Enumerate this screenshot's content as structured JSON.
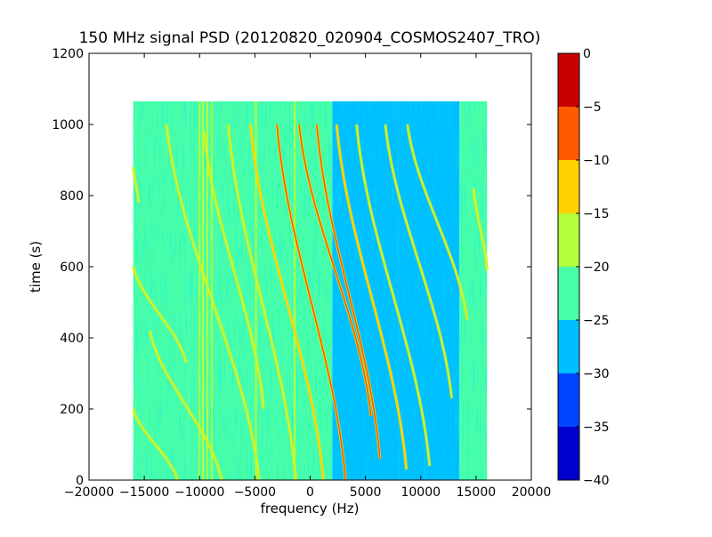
{
  "chart_data": {
    "type": "heatmap",
    "title": "150 MHz signal PSD (20120820_020904_COSMOS2407_TRO)",
    "xlabel": "frequency (Hz)",
    "ylabel": "time (s)",
    "xlim": [
      -20000,
      20000
    ],
    "ylim": [
      0,
      1200
    ],
    "xticks": [
      -20000,
      -15000,
      -10000,
      -5000,
      0,
      5000,
      10000,
      15000,
      20000
    ],
    "xtick_labels": [
      "−20000",
      "−15000",
      "−10000",
      "−5000",
      "0",
      "5000",
      "10000",
      "15000",
      "20000"
    ],
    "yticks": [
      0,
      200,
      400,
      600,
      800,
      1000,
      1200
    ],
    "ytick_labels": [
      "0",
      "200",
      "400",
      "600",
      "800",
      "1000",
      "1200"
    ],
    "data_extent": {
      "freq": [
        -16000,
        16000
      ],
      "time": [
        0,
        1065
      ]
    },
    "colorbar": {
      "levels": [
        -40,
        -35,
        -30,
        -25,
        -20,
        -15,
        -10,
        -5,
        0
      ],
      "tick_labels": [
        "−40",
        "−35",
        "−30",
        "−25",
        "−20",
        "−15",
        "−10",
        "−5",
        "0"
      ],
      "colors": [
        "#0000cd",
        "#0044ff",
        "#00bfff",
        "#48ffa8",
        "#b4ff3c",
        "#ffd100",
        "#ff5a00",
        "#c80000"
      ]
    },
    "background_psd": {
      "description_regions": [
        {
          "freq": [
            -16000,
            -11000
          ],
          "psd": -22.5
        },
        {
          "freq": [
            -11000,
            2000
          ],
          "psd": -22.5
        },
        {
          "freq": [
            2000,
            8000
          ],
          "psd": -25.5
        },
        {
          "freq": [
            8000,
            13500
          ],
          "psd": -28
        },
        {
          "freq": [
            13500,
            16000
          ],
          "psd": -22.5
        }
      ]
    },
    "vertical_lines": [
      {
        "freq": -10000,
        "psd": -17
      },
      {
        "freq": -9700,
        "psd": -17
      },
      {
        "freq": -9300,
        "psd": -17
      },
      {
        "freq": -8900,
        "psd": -17
      },
      {
        "freq": -4900,
        "psd": -17
      },
      {
        "freq": -1400,
        "psd": -17
      }
    ],
    "doppler_traces": [
      {
        "freq_start": -16000,
        "t_start": 880,
        "freq_end": -15500,
        "t_end": 780,
        "psd": -17
      },
      {
        "freq_start": -16000,
        "t_start": 600,
        "freq_end": -11200,
        "t_end": 330,
        "psd": -17
      },
      {
        "freq_start": -16000,
        "t_start": 200,
        "freq_end": -12000,
        "t_end": 0,
        "psd": -17
      },
      {
        "freq_start": -14500,
        "t_start": 420,
        "freq_end": -8000,
        "t_end": 0,
        "psd": -17
      },
      {
        "freq_start": -13000,
        "t_start": 1000,
        "freq_end": -4600,
        "t_end": 0,
        "psd": -17
      },
      {
        "freq_start": -9600,
        "t_start": 980,
        "freq_end": -4200,
        "t_end": 200,
        "psd": -17
      },
      {
        "freq_start": -7400,
        "t_start": 1000,
        "freq_end": -1300,
        "t_end": 0,
        "psd": -17
      },
      {
        "freq_start": -5400,
        "t_start": 1000,
        "freq_end": 1200,
        "t_end": 0,
        "psd": -14
      },
      {
        "freq_start": -3000,
        "t_start": 1000,
        "freq_end": 3200,
        "t_end": 0,
        "psd": -8
      },
      {
        "freq_start": -1000,
        "t_start": 1000,
        "freq_end": 5500,
        "t_end": 180,
        "psd": -8
      },
      {
        "freq_start": 600,
        "t_start": 1000,
        "freq_end": 6300,
        "t_end": 60,
        "psd": -8
      },
      {
        "freq_start": 2400,
        "t_start": 1000,
        "freq_end": 8700,
        "t_end": 30,
        "psd": -12
      },
      {
        "freq_start": 4200,
        "t_start": 1000,
        "freq_end": 10800,
        "t_end": 40,
        "psd": -17
      },
      {
        "freq_start": 6800,
        "t_start": 1000,
        "freq_end": 12800,
        "t_end": 230,
        "psd": -17
      },
      {
        "freq_start": 8800,
        "t_start": 1000,
        "freq_end": 14200,
        "t_end": 450,
        "psd": -17
      },
      {
        "freq_start": 14800,
        "t_start": 820,
        "freq_end": 16000,
        "t_end": 590,
        "psd": -17
      }
    ]
  }
}
